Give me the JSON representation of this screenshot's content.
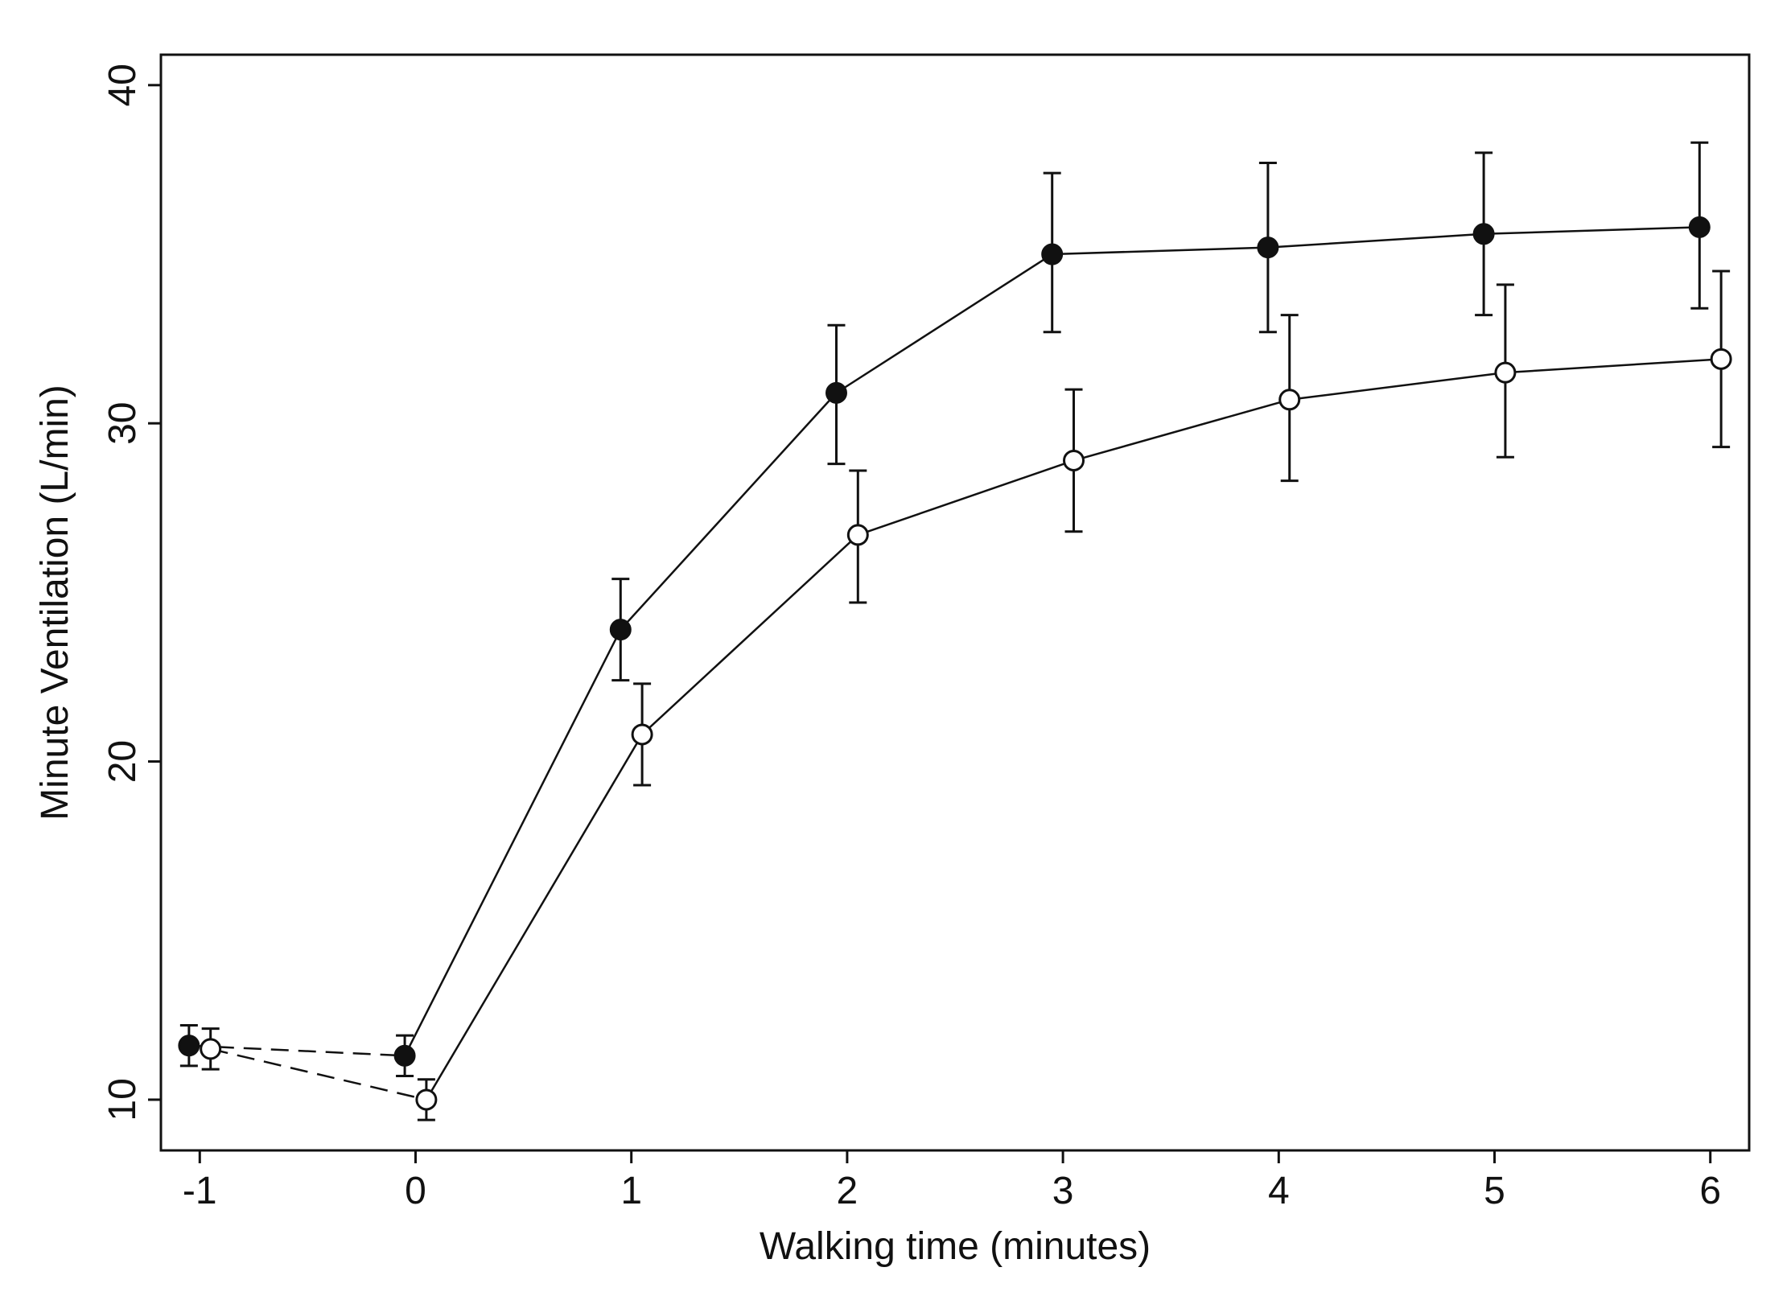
{
  "chart_data": {
    "type": "line",
    "title": "",
    "xlabel": "Walking time  (minutes)",
    "ylabel": "Minute Ventilation (L/min)",
    "xlim": [
      -1.18,
      6.18
    ],
    "ylim": [
      8.5,
      40.9
    ],
    "xticks": [
      -1,
      0,
      1,
      2,
      3,
      4,
      5,
      6
    ],
    "xtick_labels": [
      "-1",
      "0",
      "1",
      "2",
      "3",
      "4",
      "5",
      "6"
    ],
    "yticks": [
      10,
      20,
      30,
      40
    ],
    "ytick_labels": [
      "10",
      "20",
      "30",
      "40"
    ],
    "grid": false,
    "colors": {
      "line": "#111111",
      "filled_marker": "#111111",
      "open_marker_fill": "#ffffff"
    },
    "series": [
      {
        "name": "filled circles",
        "marker": "filled",
        "x": [
          -1.05,
          -0.05,
          0.95,
          1.95,
          2.95,
          3.95,
          4.95,
          5.95
        ],
        "y": [
          11.6,
          11.3,
          23.9,
          30.9,
          35.0,
          35.2,
          35.6,
          35.8
        ],
        "err_low": [
          11.0,
          10.7,
          22.4,
          28.8,
          32.7,
          32.7,
          33.2,
          33.4
        ],
        "err_high": [
          12.2,
          11.9,
          25.4,
          32.9,
          37.4,
          37.7,
          38.0,
          38.3
        ],
        "dashed_segments_until_index": 1
      },
      {
        "name": "open circles",
        "marker": "open",
        "x": [
          -0.95,
          0.05,
          1.05,
          2.05,
          3.05,
          4.05,
          5.05,
          6.05
        ],
        "y": [
          11.5,
          10.0,
          20.8,
          26.7,
          28.9,
          30.7,
          31.5,
          31.9
        ],
        "err_low": [
          10.9,
          9.4,
          19.3,
          24.7,
          26.8,
          28.3,
          29.0,
          29.3
        ],
        "err_high": [
          12.1,
          10.6,
          22.3,
          28.6,
          31.0,
          33.2,
          34.1,
          34.5
        ],
        "dashed_segments_until_index": 1
      }
    ]
  }
}
